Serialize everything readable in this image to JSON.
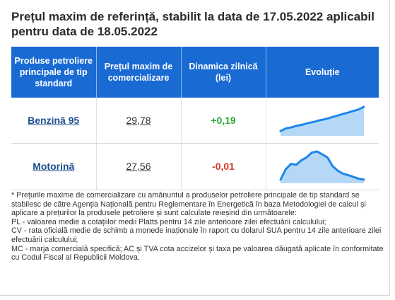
{
  "title": "Prețul maxim de referință, stabilit la data de 17.05.2022 aplicabil pentru data de 18.05.2022",
  "table": {
    "headers": [
      "Produse petroliere principale de tip standard",
      "Prețul maxim de comercializare",
      "Dinamica zilnică (lei)",
      "Evoluție"
    ],
    "rows": [
      {
        "product": "Benzină 95",
        "price": "29,78",
        "delta": "+0,19",
        "delta_color": "#2eaa3c",
        "trend": [
          0.1,
          0.2,
          0.24,
          0.3,
          0.34,
          0.4,
          0.44,
          0.5,
          0.54,
          0.6,
          0.66,
          0.72,
          0.78,
          0.84,
          0.9,
          1.0
        ]
      },
      {
        "product": "Motorină",
        "price": "27,56",
        "delta": "-0,01",
        "delta_color": "#d8352a",
        "trend": [
          0.05,
          0.4,
          0.58,
          0.55,
          0.7,
          0.8,
          0.96,
          1.0,
          0.9,
          0.8,
          0.5,
          0.35,
          0.25,
          0.2,
          0.14,
          0.08,
          0.05
        ]
      }
    ]
  },
  "colors": {
    "header_bg": "#1a6ad4",
    "spark_line": "#1e86ea",
    "spark_fill": "#b6d8f7"
  },
  "notes": [
    "* Prețurile maxime de comercializare cu amănuntul a produselor petroliere principale de tip standard se stabilesc de către Agenția Națională pentru Reglementare în Energetică în baza Metodologiei de calcul și aplicare a prețurilor la produsele petroliere și sunt calculate reieșind din următoarele:",
    "PL - valoarea medie a cotațiilor medii Platts pentru 14 zile anterioare zilei efectuării calculului;",
    "CV - rata oficială medie de schimb a monede inaționale în raport cu dolarul SUA pentru 14 zile anterioare zilei efectuării calculului;",
    "MC - marja comercială specifică; AC și TVA cota accizelor și taxa pe valoarea dăugată aplicate în conformitate cu Codul Fiscal al Republicii Moldova."
  ]
}
